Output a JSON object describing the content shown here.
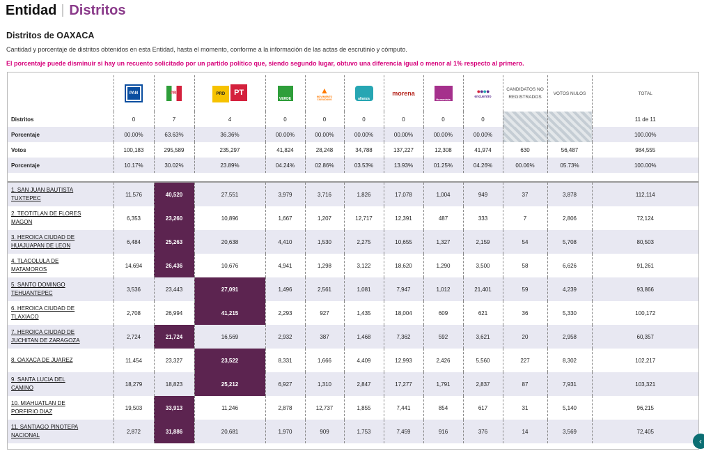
{
  "header": {
    "entidad": "Entidad",
    "distritos": "Distritos"
  },
  "title": "Distritos de OAXACA",
  "description": "Cantidad y porcentaje de distritos obtenidos en esta Entidad, hasta el momento, conforme a la información de las actas de escrutinio y cómputo.",
  "warning": "El porcentaje puede disminuir si hay un recuento solicitado por un partido político que, siendo segundo lugar, obtuvo una diferencia igual o menor al 1% respecto al primero.",
  "columns": {
    "pan": {
      "label": "PAN",
      "color": "#0a4ea0"
    },
    "pri": {
      "label": "PRI",
      "color": "#d4213d"
    },
    "prd_pt": {
      "label1": "PRD",
      "label2": "PT",
      "color1": "#f6c200",
      "color2": "#d4213d"
    },
    "verde": {
      "label": "VERDE",
      "color": "#2e9e3a"
    },
    "mc": {
      "label": "MOVIMIENTO CIUDADANO",
      "color": "#ff7a00"
    },
    "alianza": {
      "label": "alianza",
      "color": "#27a6b3"
    },
    "morena": {
      "label": "morena",
      "color": "#b5261e"
    },
    "humanista": {
      "label": "Humanista",
      "color": "#a5308c"
    },
    "encuentro": {
      "label": "encuentro",
      "color": "#5b2d8e"
    },
    "cnr": "CANDIDATOS NO REGISTRADOS",
    "nulos": "VOTOS NULOS",
    "total": "TOTAL"
  },
  "summary": [
    {
      "label": "Distritos",
      "values": [
        "0",
        "7",
        "4",
        "0",
        "0",
        "0",
        "0",
        "0",
        "0",
        "",
        "",
        "11 de 11"
      ]
    },
    {
      "label": "Porcentaje",
      "values": [
        "00.00%",
        "63.63%",
        "36.36%",
        "00.00%",
        "00.00%",
        "00.00%",
        "00.00%",
        "00.00%",
        "00.00%",
        "",
        "",
        "100.00%"
      ]
    },
    {
      "label": "Votos",
      "values": [
        "100,183",
        "295,589",
        "235,297",
        "41,824",
        "28,248",
        "34,788",
        "137,227",
        "12,308",
        "41,974",
        "630",
        "56,487",
        "984,555"
      ]
    },
    {
      "label": "Porcentaje",
      "values": [
        "10.17%",
        "30.02%",
        "23.89%",
        "04.24%",
        "02.86%",
        "03.53%",
        "13.93%",
        "01.25%",
        "04.26%",
        "00.06%",
        "05.73%",
        "100.00%"
      ]
    }
  ],
  "districts": [
    {
      "name1": "1. SAN JUAN BAUTISTA",
      "name2": "TUXTEPEC",
      "values": [
        "11,576",
        "40,520",
        "27,551",
        "3,979",
        "3,716",
        "1,826",
        "17,078",
        "1,004",
        "949",
        "37",
        "3,878",
        "112,114"
      ],
      "win": 1
    },
    {
      "name1": "2. TEOTITLAN DE FLORES",
      "name2": "MAGON",
      "values": [
        "6,353",
        "23,260",
        "10,896",
        "1,667",
        "1,207",
        "12,717",
        "12,391",
        "487",
        "333",
        "7",
        "2,806",
        "72,124"
      ],
      "win": 1
    },
    {
      "name1": "3. HEROICA CIUDAD DE",
      "name2": "HUAJUAPAN DE LEON",
      "values": [
        "6,484",
        "25,263",
        "20,638",
        "4,410",
        "1,530",
        "2,275",
        "10,655",
        "1,327",
        "2,159",
        "54",
        "5,708",
        "80,503"
      ],
      "win": 1
    },
    {
      "name1": "4. TLACOLULA DE",
      "name2": "MATAMOROS",
      "values": [
        "14,694",
        "26,436",
        "10,676",
        "4,941",
        "1,298",
        "3,122",
        "18,620",
        "1,290",
        "3,500",
        "58",
        "6,626",
        "91,261"
      ],
      "win": 1
    },
    {
      "name1": "5. SANTO DOMINGO",
      "name2": "TEHUANTEPEC",
      "values": [
        "3,536",
        "23,443",
        "27,091",
        "1,496",
        "2,561",
        "1,081",
        "7,947",
        "1,012",
        "21,401",
        "59",
        "4,239",
        "93,866"
      ],
      "win": 2
    },
    {
      "name1": "6. HEROICA CIUDAD DE",
      "name2": "TLAXIACO",
      "values": [
        "2,708",
        "26,994",
        "41,215",
        "2,293",
        "927",
        "1,435",
        "18,004",
        "609",
        "621",
        "36",
        "5,330",
        "100,172"
      ],
      "win": 2
    },
    {
      "name1": "7. HEROICA CIUDAD DE",
      "name2": "JUCHITAN DE ZARAGOZA",
      "values": [
        "2,724",
        "21,724",
        "16,569",
        "2,932",
        "387",
        "1,468",
        "7,362",
        "592",
        "3,621",
        "20",
        "2,958",
        "60,357"
      ],
      "win": 1
    },
    {
      "name1": "8. OAXACA DE JUAREZ",
      "name2": "",
      "values": [
        "11,454",
        "23,327",
        "23,522",
        "8,331",
        "1,666",
        "4,409",
        "12,993",
        "2,426",
        "5,560",
        "227",
        "8,302",
        "102,217"
      ],
      "win": 2
    },
    {
      "name1": "9. SANTA LUCIA DEL",
      "name2": "CAMINO",
      "values": [
        "18,279",
        "18,823",
        "25,212",
        "6,927",
        "1,310",
        "2,847",
        "17,277",
        "1,791",
        "2,837",
        "87",
        "7,931",
        "103,321"
      ],
      "win": 2
    },
    {
      "name1": "10. MIAHUATLAN DE",
      "name2": "PORFIRIO DIAZ",
      "values": [
        "19,503",
        "33,913",
        "11,246",
        "2,878",
        "12,737",
        "1,855",
        "7,441",
        "854",
        "617",
        "31",
        "5,140",
        "96,215"
      ],
      "win": 1
    },
    {
      "name1": "11. SANTIAGO PINOTEPA",
      "name2": "NACIONAL",
      "values": [
        "2,872",
        "31,886",
        "20,681",
        "1,970",
        "909",
        "1,753",
        "7,459",
        "916",
        "376",
        "14",
        "3,569",
        "72,405"
      ],
      "win": 1
    }
  ]
}
